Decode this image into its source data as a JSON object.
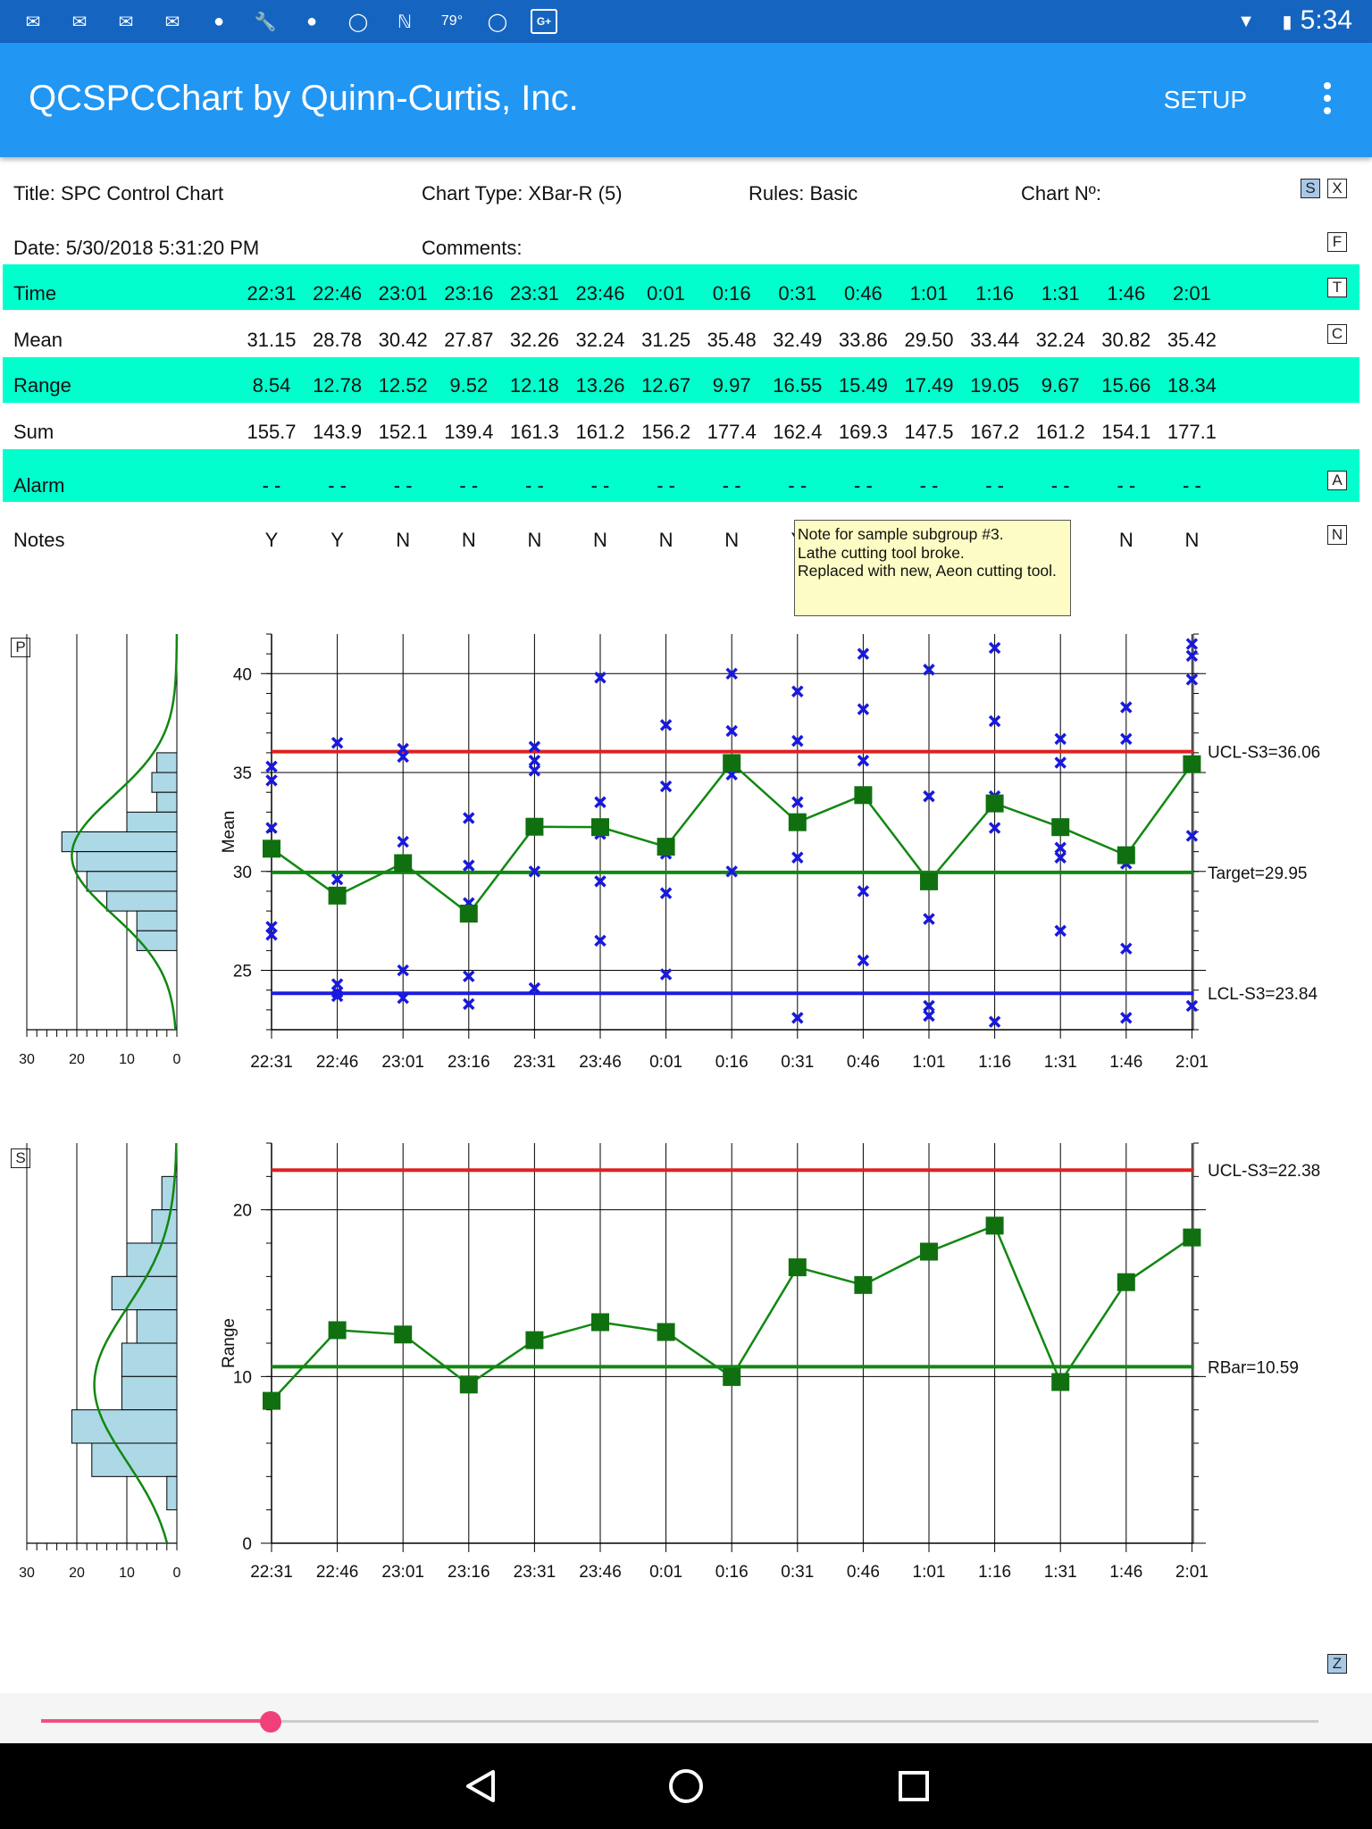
{
  "status_bar": {
    "time": "5:34",
    "temperature": "79°",
    "icons": [
      "gmail-icon",
      "gmail-icon",
      "gmail-icon",
      "gmail-icon",
      "keyhole-icon",
      "wrench-icon",
      "keyhole-icon",
      "shield-icon",
      "n-app-icon",
      "temperature-icon",
      "shield-icon",
      "google-plus-icon",
      "wifi-icon",
      "battery-icon"
    ],
    "google_plus_label": "G+"
  },
  "app_bar": {
    "title": "QCSPCChart by Quinn-Curtis, Inc.",
    "setup_label": "SETUP"
  },
  "header": {
    "title": "Title: SPC Control Chart",
    "chart_type": "Chart Type: XBar-R (5)",
    "rules": "Rules: Basic",
    "chart_no": "Chart Nº:",
    "date": "Date: 5/30/2018 5:31:20 PM",
    "comments": "Comments:"
  },
  "buttons": {
    "s": "S",
    "x": "X",
    "f": "F",
    "t": "T",
    "c": "C",
    "a": "A",
    "n": "N",
    "p": "P",
    "s2": "S",
    "z": "Z"
  },
  "table": {
    "labels": {
      "time": "Time",
      "mean": "Mean",
      "range": "Range",
      "sum": "Sum",
      "alarm": "Alarm",
      "notes": "Notes"
    },
    "time": [
      "22:31",
      "22:46",
      "23:01",
      "23:16",
      "23:31",
      "23:46",
      "0:01",
      "0:16",
      "0:31",
      "0:46",
      "1:01",
      "1:16",
      "1:31",
      "1:46",
      "2:01"
    ],
    "mean": [
      "31.15",
      "28.78",
      "30.42",
      "27.87",
      "32.26",
      "32.24",
      "31.25",
      "35.48",
      "32.49",
      "33.86",
      "29.50",
      "33.44",
      "32.24",
      "30.82",
      "35.42"
    ],
    "range": [
      "8.54",
      "12.78",
      "12.52",
      "9.52",
      "12.18",
      "13.26",
      "12.67",
      "9.97",
      "16.55",
      "15.49",
      "17.49",
      "19.05",
      "9.67",
      "15.66",
      "18.34"
    ],
    "sum": [
      "155.7",
      "143.9",
      "152.1",
      "139.4",
      "161.3",
      "161.2",
      "156.2",
      "177.4",
      "162.4",
      "169.3",
      "147.5",
      "167.2",
      "161.2",
      "154.1",
      "177.1"
    ],
    "alarm": [
      "- -",
      "- -",
      "- -",
      "- -",
      "- -",
      "- -",
      "- -",
      "- -",
      "- -",
      "- -",
      "- -",
      "- -",
      "- -",
      "- -",
      "- -"
    ],
    "notes": [
      "Y",
      "Y",
      "N",
      "N",
      "N",
      "N",
      "N",
      "N",
      "Y",
      "",
      "",
      "",
      "",
      "N",
      "N"
    ]
  },
  "tooltip": {
    "lines": [
      "Note for sample subgroup #3.",
      "Lathe cutting tool broke.",
      "Replaced with new, Aeon cutting tool."
    ]
  },
  "colors": {
    "band": "#00ffcc",
    "ucl": "#e02020",
    "lcl": "#1c1ce0",
    "target": "#118811",
    "points": "#107010",
    "samples": "#1818e0",
    "histogram": "#add8e6"
  },
  "chart_data": [
    {
      "type": "line",
      "title": "",
      "ylabel": "Mean",
      "x": [
        "22:31",
        "22:46",
        "23:01",
        "23:16",
        "23:31",
        "23:46",
        "0:01",
        "0:16",
        "0:31",
        "0:46",
        "1:01",
        "1:16",
        "1:31",
        "1:46",
        "2:01"
      ],
      "ylim": [
        22,
        42
      ],
      "yticks": [
        25,
        30,
        35,
        40
      ],
      "series": [
        {
          "values": [
            31.15,
            28.78,
            30.42,
            27.87,
            32.26,
            32.24,
            31.25,
            35.48,
            32.49,
            33.86,
            29.5,
            33.44,
            32.24,
            30.82,
            35.42
          ]
        }
      ],
      "samples": [
        [
          35.3,
          34.6,
          32.2,
          27.2,
          26.8
        ],
        [
          36.5,
          29.6,
          24.3,
          23.9,
          23.7
        ],
        [
          36.2,
          35.8,
          31.5,
          25.0,
          23.6
        ],
        [
          32.7,
          30.3,
          28.4,
          24.7,
          23.3
        ],
        [
          36.3,
          35.6,
          35.1,
          30.0,
          24.1
        ],
        [
          39.8,
          33.5,
          31.9,
          29.5,
          26.5
        ],
        [
          37.4,
          34.3,
          30.9,
          28.9,
          24.8
        ],
        [
          40.0,
          37.1,
          35.5,
          34.9,
          30.0
        ],
        [
          39.1,
          36.6,
          33.5,
          30.7,
          22.6
        ],
        [
          41.0,
          38.2,
          35.6,
          29.0,
          25.5
        ],
        [
          40.2,
          33.8,
          27.6,
          23.2,
          22.7
        ],
        [
          41.3,
          37.6,
          33.8,
          32.2,
          22.4
        ],
        [
          36.7,
          35.5,
          31.2,
          30.7,
          27.0
        ],
        [
          38.3,
          36.7,
          30.4,
          26.1,
          22.6
        ],
        [
          41.5,
          40.9,
          39.7,
          31.8,
          23.2
        ]
      ],
      "limits": [
        {
          "name": "UCL-S3=36.06",
          "value": 36.06,
          "color": "#e02020"
        },
        {
          "name": "Target=29.95",
          "value": 29.95,
          "color": "#118811"
        },
        {
          "name": "LCL-S3=23.84",
          "value": 23.84,
          "color": "#1c1ce0"
        }
      ],
      "histogram": {
        "xlim": [
          30,
          0
        ],
        "xticks": [
          30,
          20,
          10,
          0
        ],
        "bins": [
          {
            "lo": 35,
            "hi": 36,
            "count": 4
          },
          {
            "lo": 34,
            "hi": 35,
            "count": 5
          },
          {
            "lo": 33,
            "hi": 34,
            "count": 4
          },
          {
            "lo": 32,
            "hi": 33,
            "count": 10
          },
          {
            "lo": 31,
            "hi": 32,
            "count": 23
          },
          {
            "lo": 30,
            "hi": 31,
            "count": 20
          },
          {
            "lo": 29,
            "hi": 30,
            "count": 18
          },
          {
            "lo": 28,
            "hi": 29,
            "count": 14
          },
          {
            "lo": 27,
            "hi": 28,
            "count": 8
          },
          {
            "lo": 26,
            "hi": 27,
            "count": 8
          }
        ],
        "curve": {
          "mean": 30.8,
          "sd": 3.0,
          "peak": 21
        }
      },
      "grid": true
    },
    {
      "type": "line",
      "title": "",
      "ylabel": "Range",
      "x": [
        "22:31",
        "22:46",
        "23:01",
        "23:16",
        "23:31",
        "23:46",
        "0:01",
        "0:16",
        "0:31",
        "0:46",
        "1:01",
        "1:16",
        "1:31",
        "1:46",
        "2:01"
      ],
      "ylim": [
        0,
        24
      ],
      "yticks": [
        0,
        10,
        20
      ],
      "series": [
        {
          "values": [
            8.54,
            12.78,
            12.52,
            9.52,
            12.18,
            13.26,
            12.67,
            9.97,
            16.55,
            15.49,
            17.49,
            19.05,
            9.67,
            15.66,
            18.34
          ]
        }
      ],
      "limits": [
        {
          "name": "UCL-S3=22.38",
          "value": 22.38,
          "color": "#e02020"
        },
        {
          "name": "RBar=10.59",
          "value": 10.59,
          "color": "#118811"
        }
      ],
      "histogram": {
        "xlim": [
          30,
          0
        ],
        "xticks": [
          30,
          20,
          10,
          0
        ],
        "bins": [
          {
            "lo": 20,
            "hi": 22,
            "count": 3
          },
          {
            "lo": 18,
            "hi": 20,
            "count": 5
          },
          {
            "lo": 16,
            "hi": 18,
            "count": 10
          },
          {
            "lo": 14,
            "hi": 16,
            "count": 13
          },
          {
            "lo": 12,
            "hi": 14,
            "count": 8
          },
          {
            "lo": 10,
            "hi": 12,
            "count": 11
          },
          {
            "lo": 8,
            "hi": 10,
            "count": 11
          },
          {
            "lo": 6,
            "hi": 8,
            "count": 21
          },
          {
            "lo": 4,
            "hi": 6,
            "count": 17
          },
          {
            "lo": 2,
            "hi": 4,
            "count": 2
          }
        ],
        "curve": {
          "mean": 9.5,
          "sd": 4.6,
          "peak": 16.5
        }
      },
      "grid": true
    }
  ],
  "slider": {
    "value": 0.18
  }
}
